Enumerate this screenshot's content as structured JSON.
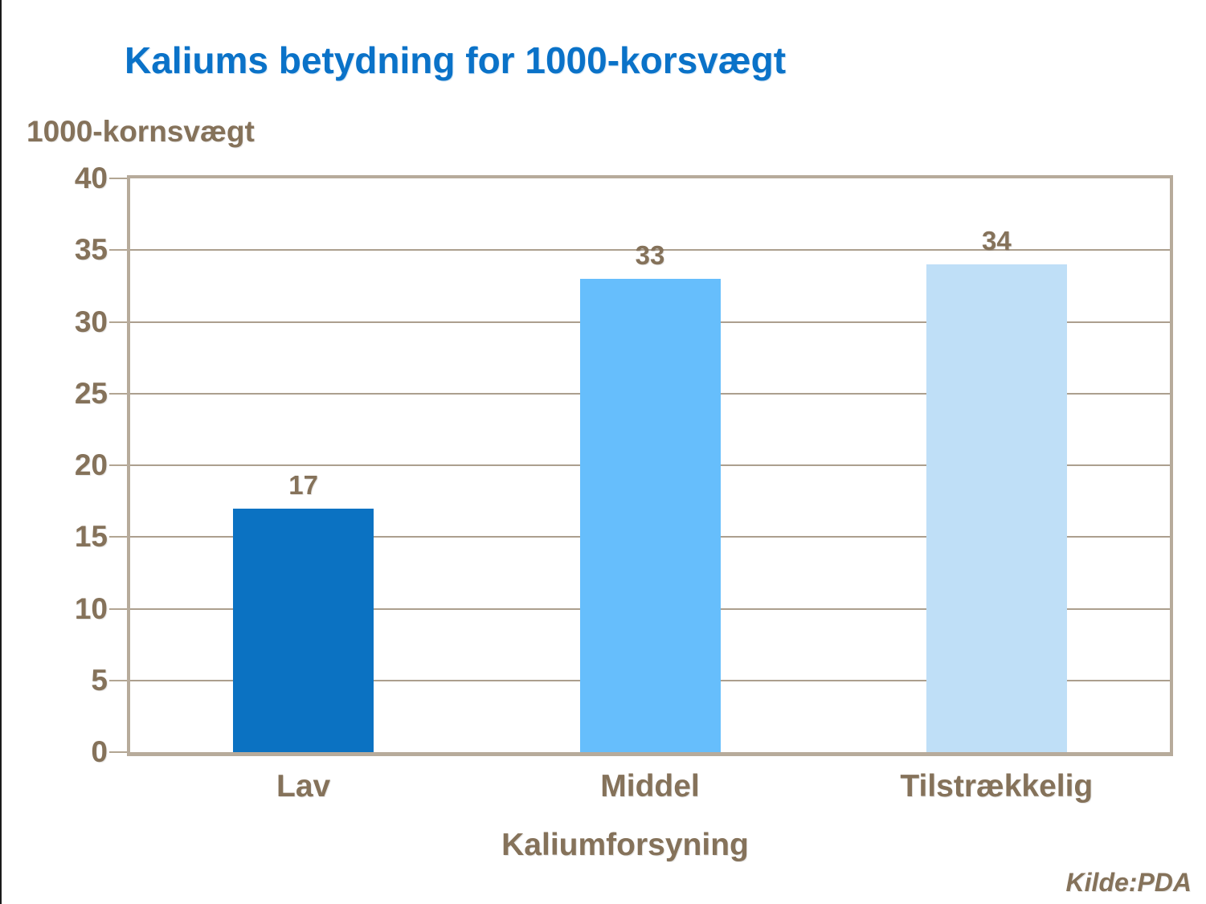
{
  "page": {
    "title": "Kaliums betydning for 1000-korsvægt",
    "source": "Kilde:PDA"
  },
  "chart_data": {
    "type": "bar",
    "title": "Kaliums betydning for 1000-korsvægt",
    "ylabel": "1000-kornsvægt",
    "xlabel": "Kaliumforsyning",
    "categories": [
      "Lav",
      "Middel",
      "Tilstrækkelig"
    ],
    "values": [
      17,
      33,
      34
    ],
    "bar_colors": [
      "#0b72c2",
      "#66befc",
      "#bfdff7"
    ],
    "ylim": [
      0,
      40
    ],
    "yticks": [
      0,
      5,
      10,
      15,
      20,
      25,
      30,
      35,
      40
    ],
    "grid": true,
    "legend_position": "none",
    "source": "Kilde:PDA",
    "colors": {
      "title_text": "#0a72c8",
      "axis_text": "#85725a",
      "frame": "#b7ab9b",
      "gridline": "#ac9f8e"
    }
  }
}
